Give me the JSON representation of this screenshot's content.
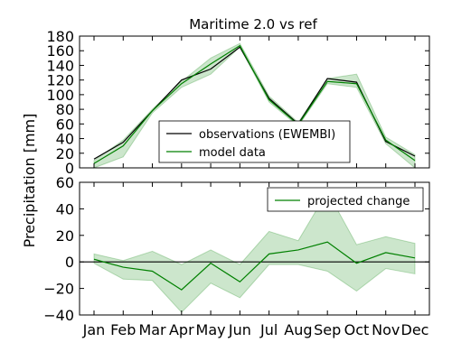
{
  "chart_data": {
    "type": "line",
    "title": "Maritime 2.0 vs ref",
    "ylabel": "Precipitation [mm]",
    "xlabel": "",
    "categories": [
      "Jan",
      "Feb",
      "Mar",
      "Apr",
      "May",
      "Jun",
      "Jul",
      "Aug",
      "Sep",
      "Oct",
      "Nov",
      "Dec"
    ],
    "top_panel": {
      "ylim": [
        0,
        180
      ],
      "yticks": [
        0,
        20,
        40,
        60,
        80,
        100,
        120,
        140,
        160,
        180
      ],
      "legend_position": "center-right",
      "series": [
        {
          "name": "observations (EWEMBI)",
          "color": "#000000",
          "values": [
            12,
            35,
            78,
            120,
            135,
            165,
            95,
            60,
            122,
            117,
            36,
            16
          ]
        },
        {
          "name": "model data",
          "color": "#008000",
          "values": [
            6,
            30,
            78,
            115,
            142,
            167,
            93,
            59,
            118,
            115,
            38,
            10
          ],
          "band_lower": [
            0,
            15,
            75,
            110,
            128,
            165,
            90,
            57,
            115,
            110,
            33,
            0
          ],
          "band_upper": [
            10,
            38,
            80,
            118,
            150,
            170,
            98,
            62,
            122,
            128,
            42,
            18
          ]
        }
      ],
      "band_color": "#008000"
    },
    "bottom_panel": {
      "ylim": [
        -40,
        60
      ],
      "yticks": [
        -40,
        -20,
        0,
        20,
        40,
        60
      ],
      "zero_line": true,
      "legend_position": "top-right",
      "series": [
        {
          "name": "projected change",
          "color": "#008000",
          "values": [
            2,
            -4,
            -7,
            -21,
            -1,
            -15,
            6,
            9,
            15,
            -1,
            7,
            3
          ],
          "band_lower": [
            -1,
            -13,
            -14,
            -38,
            -16,
            -27,
            -2,
            -2,
            -7,
            -22,
            -5,
            -9
          ],
          "band_upper": [
            6,
            1,
            8,
            -2,
            9,
            -2,
            23,
            16,
            53,
            13,
            19,
            14
          ]
        }
      ],
      "band_color": "#008000"
    }
  }
}
